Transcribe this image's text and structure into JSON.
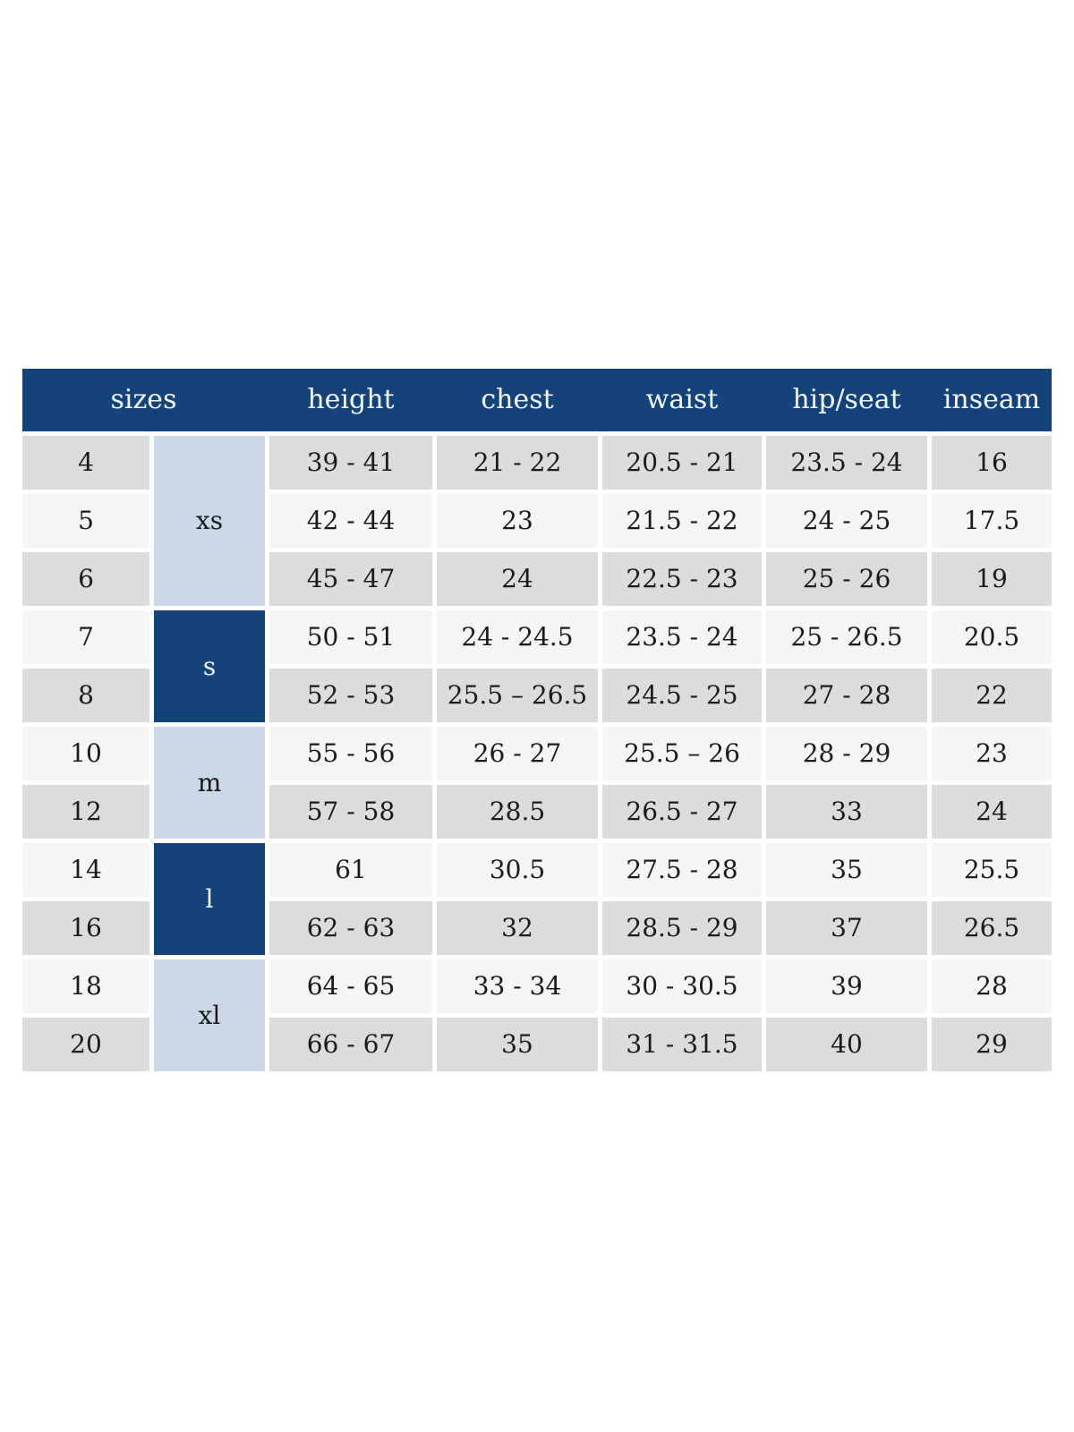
{
  "chart_data": {
    "type": "table",
    "headers": [
      "sizes",
      "height",
      "chest",
      "waist",
      "hip/seat",
      "inseam"
    ],
    "groups": [
      {
        "label": "xs",
        "row_span": 3,
        "style": "light"
      },
      {
        "label": "s",
        "row_span": 2,
        "style": "dark"
      },
      {
        "label": "m",
        "row_span": 2,
        "style": "light"
      },
      {
        "label": "l",
        "row_span": 2,
        "style": "dark"
      },
      {
        "label": "xl",
        "row_span": 2,
        "style": "light"
      }
    ],
    "rows": [
      {
        "size": "4",
        "group": "xs",
        "height": "39 - 41",
        "chest": "21 - 22",
        "waist": "20.5 - 21",
        "hip_seat": "23.5 - 24",
        "inseam": "16"
      },
      {
        "size": "5",
        "group": "xs",
        "height": "42 - 44",
        "chest": "23",
        "waist": "21.5 - 22",
        "hip_seat": "24 - 25",
        "inseam": "17.5"
      },
      {
        "size": "6",
        "group": "xs",
        "height": "45 - 47",
        "chest": "24",
        "waist": "22.5 - 23",
        "hip_seat": "25 - 26",
        "inseam": "19"
      },
      {
        "size": "7",
        "group": "s",
        "height": "50 - 51",
        "chest": "24 - 24.5",
        "waist": "23.5 - 24",
        "hip_seat": "25 - 26.5",
        "inseam": "20.5"
      },
      {
        "size": "8",
        "group": "s",
        "height": "52 - 53",
        "chest": "25.5 – 26.5",
        "waist": "24.5 - 25",
        "hip_seat": "27 - 28",
        "inseam": "22"
      },
      {
        "size": "10",
        "group": "m",
        "height": "55 - 56",
        "chest": "26 - 27",
        "waist": "25.5 – 26",
        "hip_seat": "28 - 29",
        "inseam": "23"
      },
      {
        "size": "12",
        "group": "m",
        "height": "57 - 58",
        "chest": "28.5",
        "waist": "26.5 - 27",
        "hip_seat": "33",
        "inseam": "24"
      },
      {
        "size": "14",
        "group": "l",
        "height": "61",
        "chest": "30.5",
        "waist": "27.5 - 28",
        "hip_seat": "35",
        "inseam": "25.5"
      },
      {
        "size": "16",
        "group": "l",
        "height": "62 - 63",
        "chest": "32",
        "waist": "28.5 - 29",
        "hip_seat": "37",
        "inseam": "26.5"
      },
      {
        "size": "18",
        "group": "xl",
        "height": "64 - 65",
        "chest": "33 - 34",
        "waist": "30 - 30.5",
        "hip_seat": "39",
        "inseam": "28"
      },
      {
        "size": "20",
        "group": "xl",
        "height": "66 - 67",
        "chest": "35",
        "waist": "31 - 31.5",
        "hip_seat": "40",
        "inseam": "29"
      }
    ],
    "layout_hints": {
      "header_spans_columns": "sizes header spans the size-number and size-group columns",
      "grid_gap_color": "#ffffff"
    }
  },
  "colors": {
    "header_bg": "#14437a",
    "header_text": "#f5f7fa",
    "group_light_bg": "#cbd8e7",
    "group_dark_bg": "#14437a",
    "row_gray": "#dcdcdc",
    "row_light": "#f5f5f5",
    "body_text": "#1a1a1a"
  }
}
